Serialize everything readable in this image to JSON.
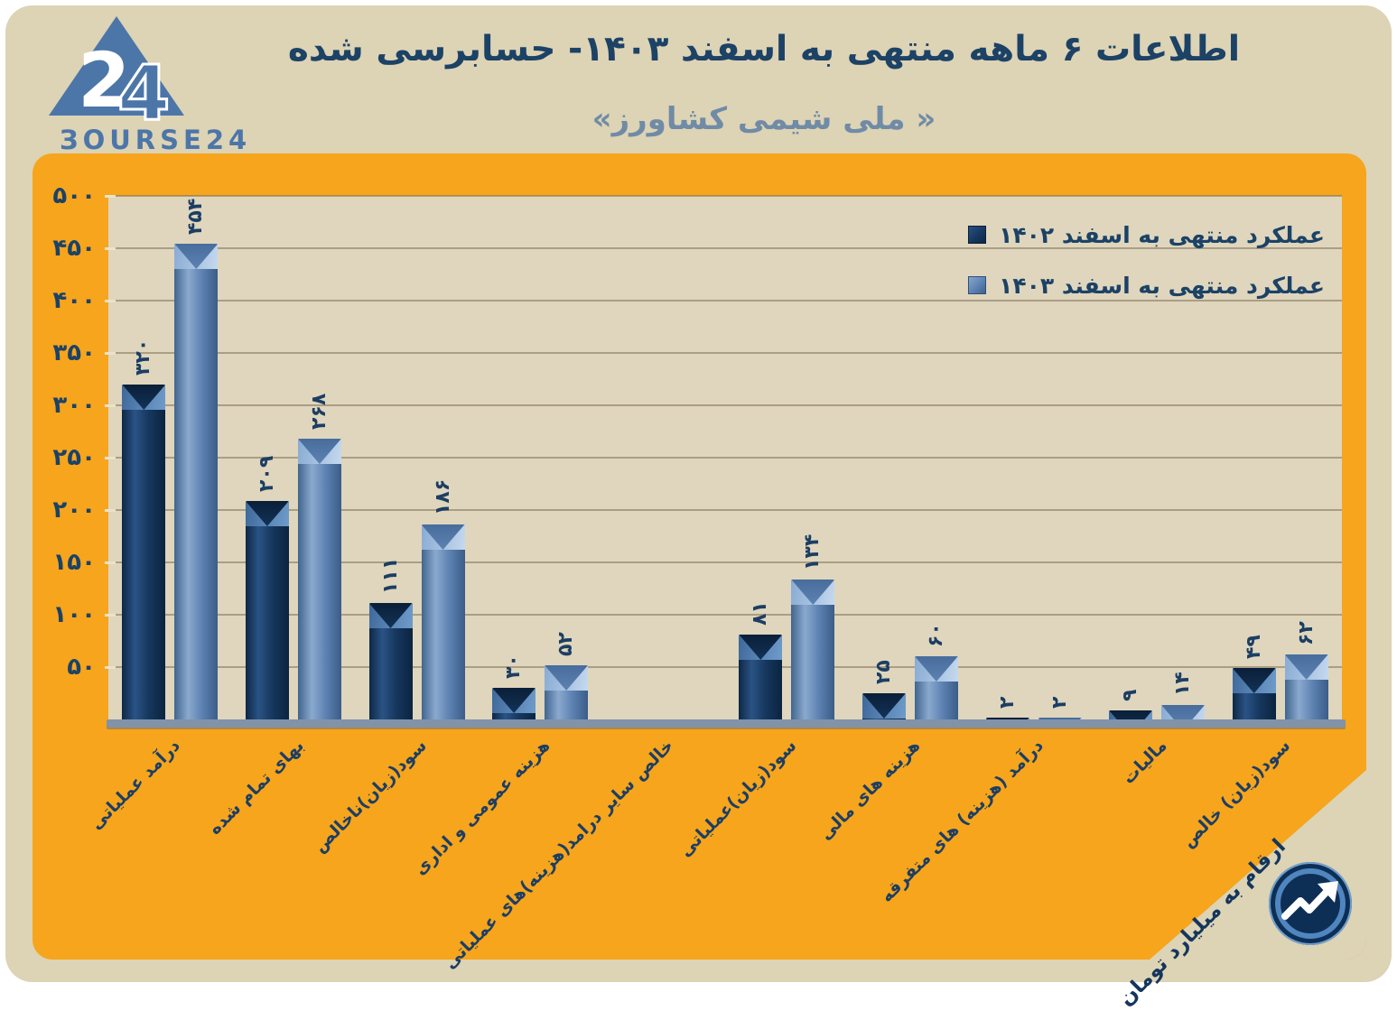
{
  "brand": {
    "display": "ЗOURSE24",
    "name": "BOURSE24",
    "logo_color": "#4C76A8"
  },
  "header": {
    "title": "اطلاعات ۶ ماهه منتهی به اسفند  ۱۴۰۳- حسابرسی شده",
    "subtitle": "« ملی شیمی کشاورز»"
  },
  "colors": {
    "panel_orange": "#F6A51C",
    "card_beige": "#DDD3B5",
    "plot_beige": "#DFD6BD",
    "bar_1402": "#16375E",
    "bar_1403": "#5D82B2",
    "title_navy": "#1C4266",
    "subtitle_blue": "#708BA6",
    "baseline_gray": "#8093A9"
  },
  "chart_data": {
    "type": "bar",
    "grid": true,
    "legend_position": "top-right",
    "ylim": [
      0,
      500
    ],
    "ytick_step": 50,
    "units_note": "ارقام به میلیارد تومان",
    "yticks": [
      {
        "v": 50,
        "label": "۵۰"
      },
      {
        "v": 100,
        "label": "۱۰۰"
      },
      {
        "v": 150,
        "label": "۱۵۰"
      },
      {
        "v": 200,
        "label": "۲۰۰"
      },
      {
        "v": 250,
        "label": "۲۵۰"
      },
      {
        "v": 300,
        "label": "۳۰۰"
      },
      {
        "v": 350,
        "label": "۳۵۰"
      },
      {
        "v": 400,
        "label": "۴۰۰"
      },
      {
        "v": 450,
        "label": "۴۵۰"
      },
      {
        "v": 500,
        "label": "۵۰۰"
      }
    ],
    "categories": [
      "درآمد عملیاتی",
      "بهای تمام شده",
      "سود(زیان)ناخالص",
      "هزینه عمومی و اداری",
      "خالص سایر درامد(هزینه)های عملیاتی",
      "سود(زیان)عملیاتی",
      "هزینه های مالی",
      "درآمد (هزینه) های متفرقه",
      "مالیات",
      "سود(زیان) خالص"
    ],
    "series": [
      {
        "key": "1402",
        "name": "عملکرد منتهی به اسفند ۱۴۰۲",
        "color": "#16375E",
        "values": [
          320,
          209,
          111,
          30,
          0,
          81,
          25,
          2,
          9,
          49
        ],
        "value_labels": [
          "۳۲۰",
          "۲۰۹",
          "۱۱۱",
          "۳۰",
          "",
          "۸۱",
          "۲۵",
          "۲",
          "۹",
          "۴۹"
        ]
      },
      {
        "key": "1403",
        "name": "عملکرد منتهی به اسفند ۱۴۰۳",
        "color": "#5D82B2",
        "values": [
          454,
          268,
          186,
          52,
          0,
          134,
          60,
          2,
          14,
          62
        ],
        "value_labels": [
          "۴۵۴",
          "۲۶۸",
          "۱۸۶",
          "۵۲",
          "",
          "۱۳۴",
          "۶۰",
          "۲",
          "۱۴",
          "۶۲"
        ]
      }
    ]
  }
}
